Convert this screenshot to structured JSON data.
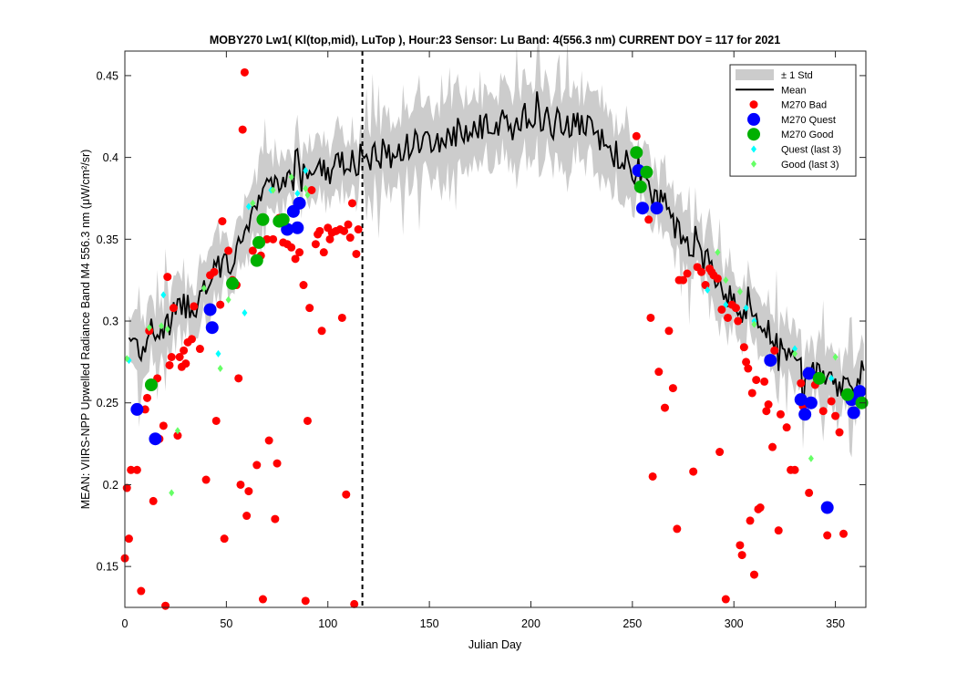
{
  "chart_data": {
    "type": "scatter",
    "title": "MOBY270   Lw1( Kl(top,mid), LuTop ),   Hour:23 Sensor: Lu Band: 4(556.3 nm)   CURRENT DOY = 117 for 2021",
    "xlabel": "Julian Day",
    "ylabel": "MEAN: VIIRS-NPP Upwelled Radiance Band M4 556.3 nm (μW/cm²/sr)",
    "xlim": [
      0,
      365
    ],
    "ylim": [
      0.125,
      0.465
    ],
    "x_ticks": [
      0,
      50,
      100,
      150,
      200,
      250,
      300,
      350
    ],
    "y_ticks": [
      0.15,
      0.2,
      0.25,
      0.3,
      0.35,
      0.4,
      0.45
    ],
    "y_tick_labels": [
      "0.15",
      "0.2",
      "0.25",
      "0.3",
      "0.35",
      "0.4",
      "0.45"
    ],
    "current_doy": 117,
    "legend_position": "top-right",
    "colors": {
      "std_band": "#cccccc",
      "mean": "#000000",
      "bad": "#ff0000",
      "quest": "#0000ff",
      "good": "#00b000",
      "quest_last3": "#00ffff",
      "good_last3": "#66ff66",
      "doy_line": "#000000"
    },
    "legend": [
      {
        "key": "std",
        "label": "± 1 Std"
      },
      {
        "key": "mean",
        "label": "Mean"
      },
      {
        "key": "bad",
        "label": "M270 Bad"
      },
      {
        "key": "quest",
        "label": "M270 Quest"
      },
      {
        "key": "good",
        "label": "M270 Good"
      },
      {
        "key": "quest_last3",
        "label": "Quest (last 3)"
      },
      {
        "key": "good_last3",
        "label": "Good (last 3)"
      }
    ],
    "mean_anchors": [
      [
        2,
        0.29
      ],
      [
        8,
        0.283
      ],
      [
        12,
        0.295
      ],
      [
        18,
        0.292
      ],
      [
        22,
        0.3
      ],
      [
        28,
        0.31
      ],
      [
        35,
        0.31
      ],
      [
        40,
        0.32
      ],
      [
        45,
        0.33
      ],
      [
        50,
        0.335
      ],
      [
        55,
        0.34
      ],
      [
        60,
        0.36
      ],
      [
        65,
        0.37
      ],
      [
        70,
        0.385
      ],
      [
        75,
        0.38
      ],
      [
        80,
        0.39
      ],
      [
        85,
        0.385
      ],
      [
        90,
        0.39
      ],
      [
        95,
        0.395
      ],
      [
        100,
        0.39
      ],
      [
        105,
        0.398
      ],
      [
        110,
        0.395
      ],
      [
        117,
        0.4
      ],
      [
        125,
        0.402
      ],
      [
        135,
        0.405
      ],
      [
        145,
        0.41
      ],
      [
        155,
        0.41
      ],
      [
        165,
        0.415
      ],
      [
        175,
        0.418
      ],
      [
        185,
        0.42
      ],
      [
        195,
        0.425
      ],
      [
        205,
        0.425
      ],
      [
        215,
        0.42
      ],
      [
        225,
        0.42
      ],
      [
        235,
        0.41
      ],
      [
        245,
        0.398
      ],
      [
        252,
        0.39
      ],
      [
        258,
        0.38
      ],
      [
        265,
        0.37
      ],
      [
        272,
        0.355
      ],
      [
        280,
        0.345
      ],
      [
        288,
        0.335
      ],
      [
        295,
        0.32
      ],
      [
        300,
        0.31
      ],
      [
        310,
        0.3
      ],
      [
        318,
        0.29
      ],
      [
        325,
        0.28
      ],
      [
        335,
        0.27
      ],
      [
        342,
        0.265
      ],
      [
        350,
        0.26
      ],
      [
        358,
        0.26
      ],
      [
        364,
        0.27
      ]
    ],
    "m270_bad": [
      [
        0,
        0.155
      ],
      [
        1,
        0.198
      ],
      [
        2,
        0.167
      ],
      [
        3,
        0.209
      ],
      [
        6,
        0.209
      ],
      [
        8,
        0.135
      ],
      [
        10,
        0.246
      ],
      [
        11,
        0.253
      ],
      [
        12,
        0.294
      ],
      [
        14,
        0.19
      ],
      [
        16,
        0.265
      ],
      [
        17,
        0.228
      ],
      [
        19,
        0.236
      ],
      [
        20,
        0.126
      ],
      [
        21,
        0.327
      ],
      [
        22,
        0.273
      ],
      [
        23,
        0.278
      ],
      [
        24,
        0.308
      ],
      [
        26,
        0.23
      ],
      [
        27,
        0.278
      ],
      [
        28,
        0.272
      ],
      [
        29,
        0.282
      ],
      [
        30,
        0.274
      ],
      [
        31,
        0.287
      ],
      [
        33,
        0.289
      ],
      [
        34,
        0.309
      ],
      [
        37,
        0.283
      ],
      [
        40,
        0.203
      ],
      [
        42,
        0.328
      ],
      [
        44,
        0.33
      ],
      [
        45,
        0.239
      ],
      [
        47,
        0.31
      ],
      [
        48,
        0.361
      ],
      [
        49,
        0.167
      ],
      [
        51,
        0.343
      ],
      [
        53,
        0.325
      ],
      [
        55,
        0.322
      ],
      [
        56,
        0.265
      ],
      [
        57,
        0.2
      ],
      [
        58,
        0.417
      ],
      [
        59,
        0.452
      ],
      [
        60,
        0.181
      ],
      [
        61,
        0.196
      ],
      [
        63,
        0.343
      ],
      [
        65,
        0.212
      ],
      [
        67,
        0.34
      ],
      [
        68,
        0.13
      ],
      [
        70,
        0.35
      ],
      [
        71,
        0.227
      ],
      [
        73,
        0.35
      ],
      [
        74,
        0.179
      ],
      [
        75,
        0.213
      ],
      [
        76,
        0.363
      ],
      [
        78,
        0.348
      ],
      [
        80,
        0.347
      ],
      [
        82,
        0.345
      ],
      [
        84,
        0.338
      ],
      [
        86,
        0.342
      ],
      [
        88,
        0.322
      ],
      [
        89,
        0.129
      ],
      [
        90,
        0.239
      ],
      [
        91,
        0.308
      ],
      [
        92,
        0.38
      ],
      [
        94,
        0.347
      ],
      [
        95,
        0.353
      ],
      [
        96,
        0.355
      ],
      [
        97,
        0.294
      ],
      [
        98,
        0.342
      ],
      [
        100,
        0.357
      ],
      [
        101,
        0.35
      ],
      [
        102,
        0.354
      ],
      [
        104,
        0.355
      ],
      [
        106,
        0.356
      ],
      [
        107,
        0.302
      ],
      [
        108,
        0.355
      ],
      [
        109,
        0.194
      ],
      [
        110,
        0.359
      ],
      [
        111,
        0.351
      ],
      [
        112,
        0.372
      ],
      [
        113,
        0.127
      ],
      [
        114,
        0.341
      ],
      [
        115,
        0.356
      ],
      [
        252,
        0.413
      ],
      [
        258,
        0.362
      ],
      [
        259,
        0.302
      ],
      [
        260,
        0.205
      ],
      [
        263,
        0.269
      ],
      [
        266,
        0.247
      ],
      [
        268,
        0.294
      ],
      [
        270,
        0.259
      ],
      [
        272,
        0.173
      ],
      [
        273,
        0.325
      ],
      [
        275,
        0.325
      ],
      [
        277,
        0.329
      ],
      [
        280,
        0.208
      ],
      [
        282,
        0.333
      ],
      [
        284,
        0.33
      ],
      [
        286,
        0.322
      ],
      [
        288,
        0.332
      ],
      [
        289,
        0.33
      ],
      [
        290,
        0.328
      ],
      [
        292,
        0.326
      ],
      [
        293,
        0.22
      ],
      [
        294,
        0.307
      ],
      [
        296,
        0.13
      ],
      [
        297,
        0.302
      ],
      [
        299,
        0.31
      ],
      [
        301,
        0.308
      ],
      [
        302,
        0.3
      ],
      [
        303,
        0.163
      ],
      [
        304,
        0.157
      ],
      [
        305,
        0.284
      ],
      [
        306,
        0.275
      ],
      [
        307,
        0.271
      ],
      [
        308,
        0.178
      ],
      [
        309,
        0.256
      ],
      [
        310,
        0.145
      ],
      [
        311,
        0.264
      ],
      [
        312,
        0.185
      ],
      [
        313,
        0.186
      ],
      [
        315,
        0.263
      ],
      [
        316,
        0.245
      ],
      [
        317,
        0.249
      ],
      [
        319,
        0.223
      ],
      [
        320,
        0.282
      ],
      [
        322,
        0.172
      ],
      [
        323,
        0.243
      ],
      [
        326,
        0.235
      ],
      [
        328,
        0.209
      ],
      [
        330,
        0.209
      ],
      [
        333,
        0.262
      ],
      [
        334,
        0.248
      ],
      [
        337,
        0.195
      ],
      [
        340,
        0.261
      ],
      [
        344,
        0.245
      ],
      [
        346,
        0.169
      ],
      [
        348,
        0.251
      ],
      [
        350,
        0.242
      ],
      [
        352,
        0.232
      ],
      [
        354,
        0.17
      ]
    ],
    "m270_quest": [
      [
        6,
        0.246
      ],
      [
        15,
        0.228
      ],
      [
        42,
        0.307
      ],
      [
        43,
        0.296
      ],
      [
        80,
        0.356
      ],
      [
        83,
        0.367
      ],
      [
        85,
        0.357
      ],
      [
        86,
        0.372
      ],
      [
        253,
        0.392
      ],
      [
        255,
        0.369
      ],
      [
        262,
        0.369
      ],
      [
        318,
        0.276
      ],
      [
        333,
        0.252
      ],
      [
        335,
        0.243
      ],
      [
        337,
        0.268
      ],
      [
        338,
        0.25
      ],
      [
        346,
        0.186
      ],
      [
        358,
        0.252
      ],
      [
        359,
        0.244
      ],
      [
        362,
        0.257
      ]
    ],
    "m270_good": [
      [
        13,
        0.261
      ],
      [
        53,
        0.323
      ],
      [
        65,
        0.337
      ],
      [
        66,
        0.348
      ],
      [
        68,
        0.362
      ],
      [
        76,
        0.361
      ],
      [
        78,
        0.362
      ],
      [
        252,
        0.403
      ],
      [
        254,
        0.382
      ],
      [
        257,
        0.391
      ],
      [
        342,
        0.265
      ],
      [
        356,
        0.255
      ],
      [
        363,
        0.25
      ]
    ],
    "quest_last3": [
      [
        2,
        0.276
      ],
      [
        19,
        0.316
      ],
      [
        46,
        0.28
      ],
      [
        59,
        0.305
      ],
      [
        61,
        0.37
      ],
      [
        72,
        0.38
      ],
      [
        85,
        0.378
      ],
      [
        89,
        0.392
      ],
      [
        287,
        0.319
      ],
      [
        296,
        0.31
      ],
      [
        306,
        0.308
      ],
      [
        310,
        0.3
      ],
      [
        330,
        0.283
      ],
      [
        348,
        0.265
      ]
    ],
    "good_last3": [
      [
        1,
        0.277
      ],
      [
        12,
        0.296
      ],
      [
        18,
        0.297
      ],
      [
        21,
        0.295
      ],
      [
        23,
        0.195
      ],
      [
        26,
        0.233
      ],
      [
        39,
        0.32
      ],
      [
        47,
        0.271
      ],
      [
        51,
        0.313
      ],
      [
        53,
        0.322
      ],
      [
        63,
        0.372
      ],
      [
        73,
        0.38
      ],
      [
        82,
        0.388
      ],
      [
        89,
        0.381
      ],
      [
        90,
        0.377
      ],
      [
        292,
        0.342
      ],
      [
        296,
        0.325
      ],
      [
        303,
        0.318
      ],
      [
        310,
        0.298
      ],
      [
        330,
        0.28
      ],
      [
        338,
        0.216
      ],
      [
        350,
        0.278
      ]
    ]
  }
}
